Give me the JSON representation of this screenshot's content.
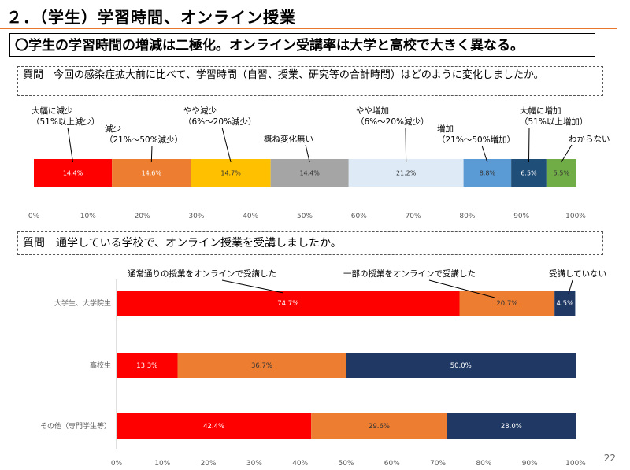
{
  "header": {
    "title": "２．（学生）学習時間、オンライン授業",
    "summary": "〇学生の学習時間の増減は二極化。オンライン受講率は大学と高校で大きく異なる。",
    "page_number": "22"
  },
  "questions": {
    "q1": "質問　今回の感染症拡大前に比べて、学習時間（自習、授業、研究等の合計時間）はどのように変化しましたか。",
    "q2": "質問　通学している学校で、オンライン授業を受講しましたか。"
  },
  "chart_data": [
    {
      "type": "bar",
      "orientation": "horizontal-stacked-100",
      "categories": [
        ""
      ],
      "series": [
        {
          "name": "大幅に減少\n（51%以上減少）",
          "values": [
            14.4
          ],
          "color": "#ff0000",
          "label_color": "#ffffff"
        },
        {
          "name": "減少\n（21%～50%減少）",
          "values": [
            14.6
          ],
          "color": "#ed7d31",
          "label_color": "#ffffff"
        },
        {
          "name": "やや減少\n（6%～20%減少）",
          "values": [
            14.7
          ],
          "color": "#ffc000",
          "label_color": "#333333"
        },
        {
          "name": "概ね変化無い",
          "values": [
            14.4
          ],
          "color": "#a5a5a5",
          "label_color": "#333333"
        },
        {
          "name": "やや増加\n（6%～20%減少）",
          "values": [
            21.2
          ],
          "color": "#deebf7",
          "label_color": "#333333"
        },
        {
          "name": "増加\n（21%～50%増加）",
          "values": [
            8.8
          ],
          "color": "#5b9bd5",
          "label_color": "#333333"
        },
        {
          "name": "大幅に増加\n（51%以上増加）",
          "values": [
            6.5
          ],
          "color": "#1f4e79",
          "label_color": "#ffffff"
        },
        {
          "name": "わからない",
          "values": [
            5.5
          ],
          "color": "#70ad47",
          "label_color": "#333333"
        }
      ],
      "data_labels": [
        "14.4%",
        "14.6%",
        "14.7%",
        "14.4%",
        "21.2%",
        "8.8%",
        "6.5%",
        "5.5%"
      ],
      "xlim": [
        0,
        100
      ],
      "xticks": [
        "0%",
        "10%",
        "20%",
        "30%",
        "40%",
        "50%",
        "60%",
        "70%",
        "80%",
        "90%",
        "100%"
      ],
      "legend": "callouts-above",
      "grid": false
    },
    {
      "type": "bar",
      "orientation": "horizontal-stacked-100",
      "categories": [
        "大学生、大学院生",
        "高校生",
        "その他（専門学生等）"
      ],
      "series": [
        {
          "name": "通常通りの授業をオンラインで受講した",
          "values": [
            74.7,
            13.3,
            42.4
          ],
          "color": "#ff0000"
        },
        {
          "name": "一部の授業をオンラインで受講した",
          "values": [
            20.7,
            36.7,
            29.6
          ],
          "color": "#ed7d31"
        },
        {
          "name": "受講していない",
          "values": [
            4.5,
            50.0,
            28.0
          ],
          "color": "#1f3864"
        }
      ],
      "data_labels": [
        [
          "74.7%",
          "20.7%",
          "4.5%"
        ],
        [
          "13.3%",
          "36.7%",
          "50.0%"
        ],
        [
          "42.4%",
          "29.6%",
          "28.0%"
        ]
      ],
      "xlim": [
        0,
        100
      ],
      "xticks": [
        "0%",
        "10%",
        "20%",
        "30%",
        "40%",
        "50%",
        "60%",
        "70%",
        "80%",
        "90%",
        "100%"
      ],
      "legend": "callouts-above",
      "grid": false
    }
  ]
}
